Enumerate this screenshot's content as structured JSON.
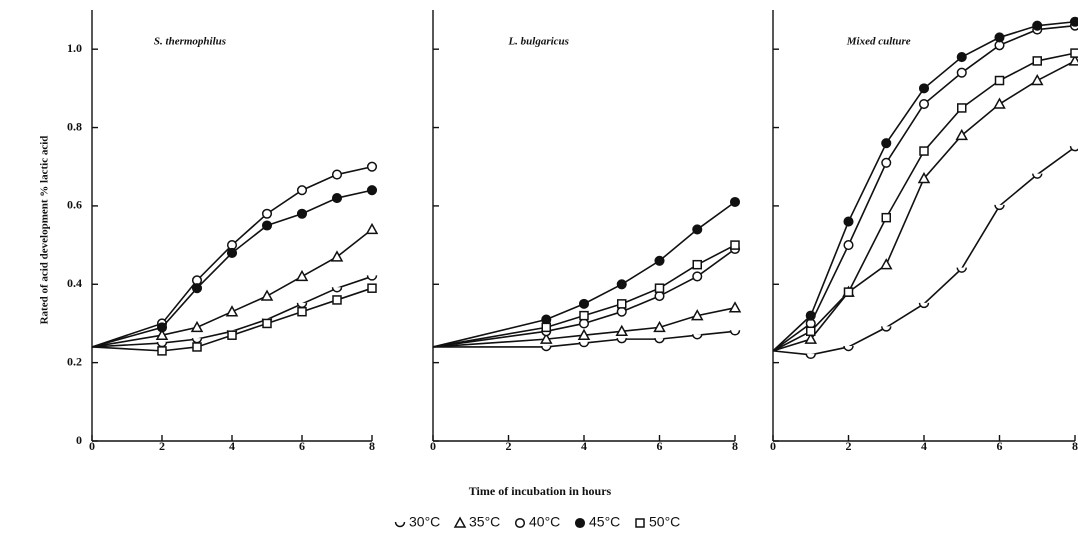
{
  "x_label": "Time of incubation in hours",
  "y_label": "Rated of acid development % lactic acid",
  "chart_data": [
    {
      "type": "line",
      "title": "S. thermophilus",
      "show_ytick_labels": true,
      "x": [
        0,
        2,
        3,
        4,
        5,
        6,
        7,
        8
      ],
      "xlim": [
        0,
        8
      ],
      "xticks": [
        0,
        2,
        4,
        6,
        8
      ],
      "ylim": [
        0,
        1.1
      ],
      "yticks": [
        0,
        0.2,
        0.4,
        0.6,
        0.8,
        {
          "value": 1.0,
          "label": "1.0"
        }
      ],
      "series": [
        {
          "name": "30°C",
          "marker": "half-circle",
          "color": "#111",
          "values": [
            0.24,
            0.25,
            0.26,
            0.28,
            0.31,
            0.35,
            0.39,
            0.42
          ]
        },
        {
          "name": "35°C",
          "marker": "triangle",
          "color": "#111",
          "values": [
            0.24,
            0.27,
            0.29,
            0.33,
            0.37,
            0.42,
            0.47,
            0.54
          ]
        },
        {
          "name": "40°C",
          "marker": "circle",
          "color": "#111",
          "values": [
            0.24,
            0.3,
            0.41,
            0.5,
            0.58,
            0.64,
            0.68,
            0.7
          ]
        },
        {
          "name": "45°C",
          "marker": "filled-circle",
          "color": "#111",
          "values": [
            0.24,
            0.29,
            0.39,
            0.48,
            0.55,
            0.58,
            0.62,
            0.64
          ]
        },
        {
          "name": "50°C",
          "marker": "square",
          "color": "#111",
          "values": [
            0.24,
            0.23,
            0.24,
            0.27,
            0.3,
            0.33,
            0.36,
            0.39
          ]
        }
      ]
    },
    {
      "type": "line",
      "title": "L. bulgaricus",
      "show_ytick_labels": false,
      "x": [
        0,
        3,
        4,
        5,
        6,
        7,
        8
      ],
      "xlim": [
        0,
        8
      ],
      "xticks": [
        0,
        2,
        4,
        6,
        8
      ],
      "ylim": [
        0,
        1.1
      ],
      "yticks": [
        0,
        0.2,
        0.4,
        0.6,
        0.8,
        1.0
      ],
      "series": [
        {
          "name": "30°C",
          "marker": "half-circle",
          "color": "#111",
          "values": [
            0.24,
            0.24,
            0.25,
            0.26,
            0.26,
            0.27,
            0.28
          ]
        },
        {
          "name": "35°C",
          "marker": "triangle",
          "color": "#111",
          "values": [
            0.24,
            0.26,
            0.27,
            0.28,
            0.29,
            0.32,
            0.34
          ]
        },
        {
          "name": "40°C",
          "marker": "circle",
          "color": "#111",
          "values": [
            0.24,
            0.28,
            0.3,
            0.33,
            0.37,
            0.42,
            0.49
          ]
        },
        {
          "name": "45°C",
          "marker": "filled-circle",
          "color": "#111",
          "values": [
            0.24,
            0.31,
            0.35,
            0.4,
            0.46,
            0.54,
            0.61
          ]
        },
        {
          "name": "50°C",
          "marker": "square",
          "color": "#111",
          "values": [
            0.24,
            0.29,
            0.32,
            0.35,
            0.39,
            0.45,
            0.5
          ]
        }
      ]
    },
    {
      "type": "line",
      "title": "Mixed culture",
      "show_ytick_labels": false,
      "x": [
        0,
        1,
        2,
        3,
        4,
        5,
        6,
        7,
        8
      ],
      "xlim": [
        0,
        8
      ],
      "xticks": [
        0,
        2,
        4,
        6,
        8
      ],
      "ylim": [
        0,
        1.1
      ],
      "yticks": [
        0,
        0.2,
        0.4,
        0.6,
        0.8,
        1.0
      ],
      "series": [
        {
          "name": "30°C",
          "marker": "half-circle",
          "color": "#111",
          "values": [
            0.23,
            0.22,
            0.24,
            0.29,
            0.35,
            0.44,
            0.6,
            0.68,
            0.75
          ]
        },
        {
          "name": "35°C",
          "marker": "triangle",
          "color": "#111",
          "values": [
            0.23,
            0.26,
            0.38,
            0.45,
            0.67,
            0.78,
            0.86,
            0.92,
            0.97
          ]
        },
        {
          "name": "40°C",
          "marker": "circle",
          "color": "#111",
          "values": [
            0.23,
            0.3,
            0.5,
            0.71,
            0.86,
            0.94,
            1.01,
            1.05,
            1.06
          ]
        },
        {
          "name": "45°C",
          "marker": "filled-circle",
          "color": "#111",
          "values": [
            0.23,
            0.32,
            0.56,
            0.76,
            0.9,
            0.98,
            1.03,
            1.06,
            1.07
          ]
        },
        {
          "name": "50°C",
          "marker": "square",
          "color": "#111",
          "values": [
            0.23,
            0.28,
            0.38,
            0.57,
            0.74,
            0.85,
            0.92,
            0.97,
            0.99
          ]
        }
      ]
    }
  ]
}
